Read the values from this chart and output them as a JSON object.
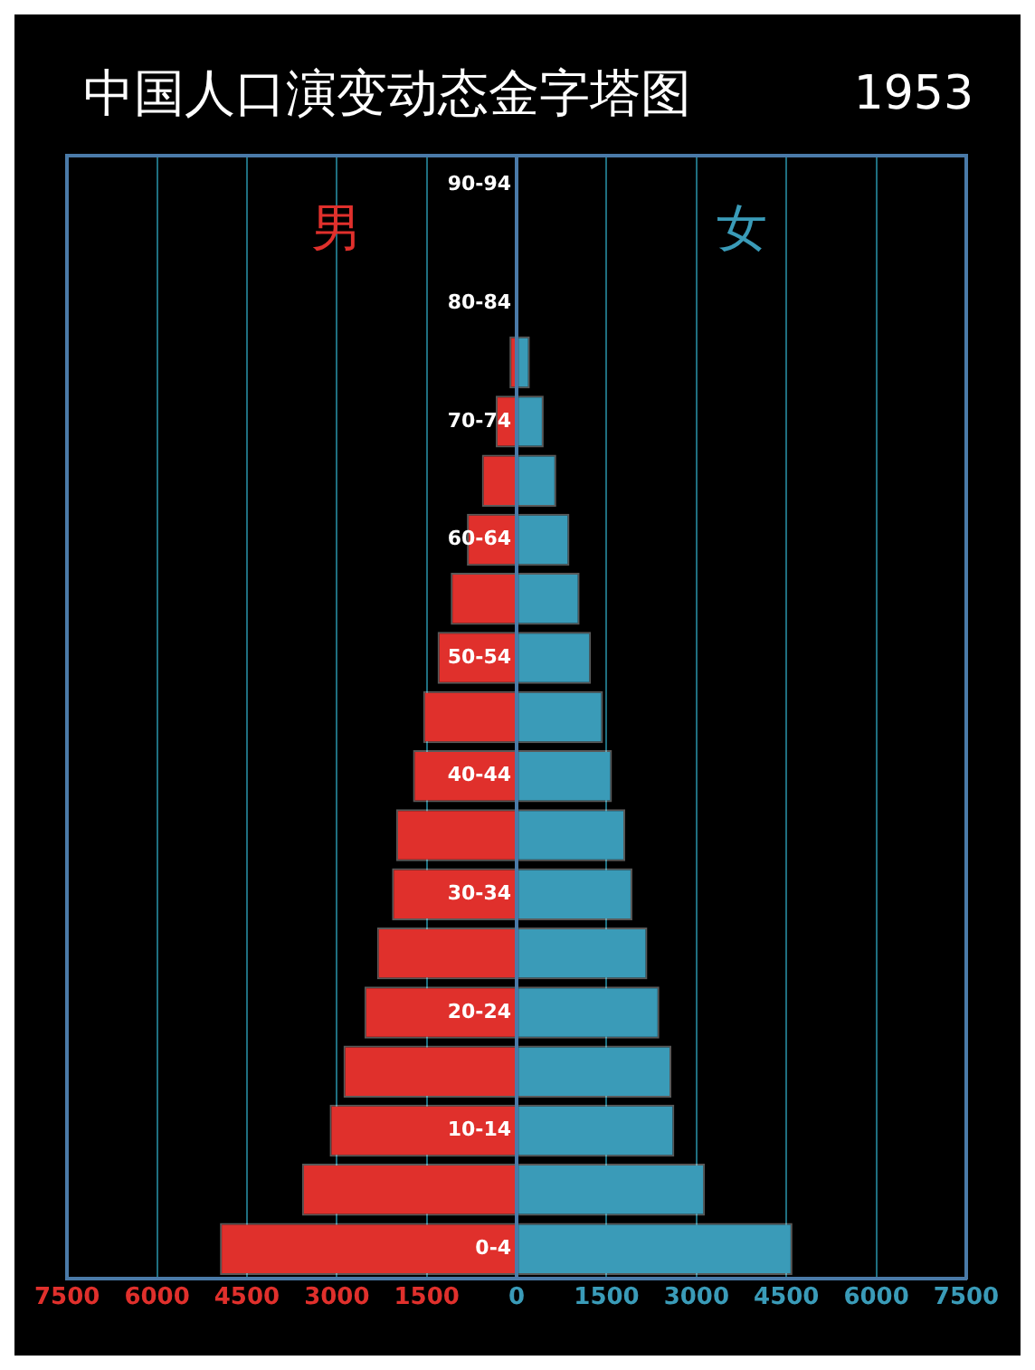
{
  "chart_data": {
    "type": "bar",
    "orientation": "horizontal",
    "stacked": true,
    "title": "中国人口演变动态金字塔图",
    "subtitle": "1953",
    "categories": [
      "90-94",
      null,
      "80-84",
      null,
      "70-74",
      null,
      "60-64",
      null,
      "50-54",
      null,
      "40-44",
      null,
      "30-34",
      null,
      "20-24",
      null,
      "10-14",
      null,
      "0-4"
    ],
    "series": [
      {
        "name": "男",
        "color": "#e0302c",
        "values": [
          0,
          0,
          0,
          -120,
          -350,
          -580,
          -830,
          -1100,
          -1320,
          -1560,
          -1730,
          -2010,
          -2080,
          -2330,
          -2540,
          -2890,
          -3120,
          -3580,
          -4950
        ]
      },
      {
        "name": "女",
        "color": "#3a9bb8",
        "values": [
          0,
          0,
          0,
          220,
          450,
          660,
          880,
          1050,
          1240,
          1440,
          1590,
          1810,
          1930,
          2180,
          2380,
          2580,
          2630,
          3140,
          4600
        ]
      }
    ],
    "xlim": [
      -7500,
      7500
    ],
    "xticks": [
      {
        "value": -7500,
        "label": "7500"
      },
      {
        "value": -6000,
        "label": "6000"
      },
      {
        "value": -4500,
        "label": "4500"
      },
      {
        "value": -3000,
        "label": "3000"
      },
      {
        "value": -1500,
        "label": "1500"
      },
      0,
      1500,
      3000,
      4500,
      6000,
      7500
    ],
    "grid": "x"
  }
}
